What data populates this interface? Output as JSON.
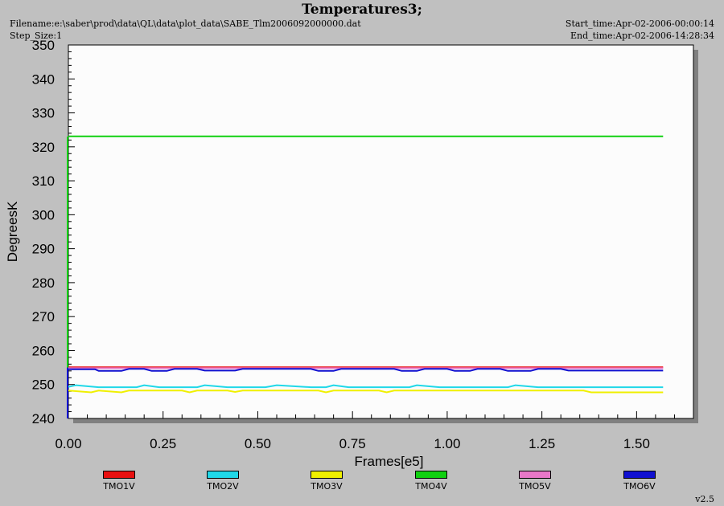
{
  "header": {
    "title": "Temperatures3;",
    "filename": "Filename:e:\\saber\\prod\\data\\QL\\data\\plot_data\\SABE_Tlm2006092000000.dat",
    "step_size": "Step_Size:1",
    "start_time": "Start_time:Apr-02-2006-00:00:14",
    "end_time": "End_time:Apr-02-2006-14:28:34"
  },
  "version": "v2.5",
  "colors": {
    "window_bg": "#c0c0c0",
    "plot_bg": "#fcfcfc",
    "shadow": "#808080"
  },
  "chart_data": {
    "type": "line",
    "title": "Temperatures3;",
    "xlabel": "Frames[e5]",
    "ylabel": "DegreesK",
    "xlim": [
      0,
      1.65
    ],
    "ylim": [
      240,
      350
    ],
    "x_ticks": [
      "0.00",
      "0.25",
      "0.50",
      "0.75",
      "1.00",
      "1.25",
      "1.50"
    ],
    "y_ticks": [
      "240",
      "250",
      "260",
      "270",
      "280",
      "290",
      "300",
      "310",
      "320",
      "330",
      "340",
      "350"
    ],
    "legend_position": "bottom",
    "grid": false,
    "series": [
      {
        "name": "TMO1V",
        "color": "#e81010",
        "points": [
          [
            0,
            255.1
          ],
          [
            1.57,
            255.1
          ]
        ]
      },
      {
        "name": "TMO2V",
        "color": "#20d8e8",
        "points": [
          [
            0,
            249.3
          ],
          [
            0.02,
            249.8
          ],
          [
            0.08,
            249.2
          ],
          [
            0.18,
            249.2
          ],
          [
            0.2,
            249.8
          ],
          [
            0.24,
            249.2
          ],
          [
            0.34,
            249.2
          ],
          [
            0.36,
            249.8
          ],
          [
            0.42,
            249.2
          ],
          [
            0.52,
            249.2
          ],
          [
            0.55,
            249.8
          ],
          [
            0.64,
            249.2
          ],
          [
            0.68,
            249.2
          ],
          [
            0.7,
            249.8
          ],
          [
            0.74,
            249.2
          ],
          [
            0.9,
            249.2
          ],
          [
            0.92,
            249.8
          ],
          [
            0.98,
            249.2
          ],
          [
            1.16,
            249.2
          ],
          [
            1.18,
            249.8
          ],
          [
            1.24,
            249.2
          ],
          [
            1.57,
            249.2
          ]
        ]
      },
      {
        "name": "TMO3V",
        "color": "#f0f000",
        "points": [
          [
            0,
            248.2
          ],
          [
            0.06,
            247.7
          ],
          [
            0.08,
            248.2
          ],
          [
            0.14,
            247.7
          ],
          [
            0.16,
            248.2
          ],
          [
            0.3,
            248.2
          ],
          [
            0.32,
            247.7
          ],
          [
            0.34,
            248.2
          ],
          [
            0.42,
            248.2
          ],
          [
            0.44,
            247.8
          ],
          [
            0.46,
            248.2
          ],
          [
            0.66,
            248.2
          ],
          [
            0.68,
            247.7
          ],
          [
            0.7,
            248.2
          ],
          [
            0.82,
            248.2
          ],
          [
            0.84,
            247.7
          ],
          [
            0.86,
            248.2
          ],
          [
            1.36,
            248.2
          ],
          [
            1.38,
            247.7
          ],
          [
            1.57,
            247.7
          ]
        ]
      },
      {
        "name": "TMO4V",
        "color": "#10d010",
        "points": [
          [
            0,
            323.1
          ],
          [
            1.57,
            323.1
          ]
        ]
      },
      {
        "name": "TMO5V",
        "color": "#e878c8",
        "points": [
          [
            0,
            254.8
          ],
          [
            1.57,
            254.8
          ]
        ]
      },
      {
        "name": "TMO6V",
        "color": "#1010d0",
        "points": [
          [
            0,
            254.5
          ],
          [
            0.07,
            254.5
          ],
          [
            0.08,
            254.0
          ],
          [
            0.14,
            254.0
          ],
          [
            0.16,
            254.6
          ],
          [
            0.2,
            254.6
          ],
          [
            0.22,
            254.0
          ],
          [
            0.26,
            254.0
          ],
          [
            0.28,
            254.6
          ],
          [
            0.34,
            254.6
          ],
          [
            0.36,
            254.1
          ],
          [
            0.44,
            254.1
          ],
          [
            0.46,
            254.6
          ],
          [
            0.64,
            254.6
          ],
          [
            0.66,
            254.0
          ],
          [
            0.7,
            254.0
          ],
          [
            0.72,
            254.6
          ],
          [
            0.86,
            254.6
          ],
          [
            0.88,
            254.0
          ],
          [
            0.92,
            254.0
          ],
          [
            0.94,
            254.6
          ],
          [
            1.0,
            254.6
          ],
          [
            1.02,
            254.0
          ],
          [
            1.06,
            254.0
          ],
          [
            1.08,
            254.6
          ],
          [
            1.14,
            254.6
          ],
          [
            1.16,
            254.0
          ],
          [
            1.22,
            254.0
          ],
          [
            1.24,
            254.6
          ],
          [
            1.3,
            254.6
          ],
          [
            1.32,
            254.1
          ],
          [
            1.57,
            254.1
          ]
        ]
      }
    ]
  }
}
